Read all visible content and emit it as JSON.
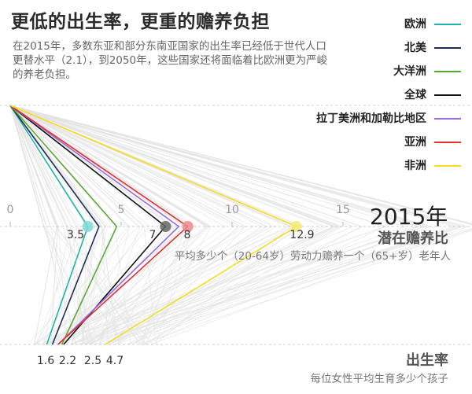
{
  "title": "更低的出生率，更重的赡养负担",
  "subtitle": "在2015年，多数东亚和部分东南亚国家的出生率已经低于世代人口更替水平（2.1），到2050年，这些国家还将面临着比欧洲更为严峻的养老负担。",
  "legend": [
    {
      "label": "欧洲",
      "color": "#1fb5ad"
    },
    {
      "label": "北美",
      "color": "#1f2d5a"
    },
    {
      "label": "大洋洲",
      "color": "#5aa832"
    },
    {
      "label": "全球",
      "color": "#111111"
    },
    {
      "label": "拉丁美洲和加勒比地区",
      "color": "#9b6be0"
    },
    {
      "label": "亚洲",
      "color": "#e53030"
    },
    {
      "label": "非洲",
      "color": "#f5dc1e"
    }
  ],
  "labels": {
    "year": "2015年",
    "measure": "潜在赡养比",
    "measure_desc": "平均多少个（20-64岁）劳动力赡养一个（65+岁）老年人",
    "birth": "出生率",
    "birth_desc": "每位女性平均生育多少个孩子"
  },
  "chart_data": {
    "type": "line",
    "x_axis": {
      "ticks": [
        "0",
        "5",
        "10",
        "15"
      ],
      "min": 0,
      "max": 20
    },
    "series": [
      {
        "name": "欧洲",
        "color": "#1fb5ad",
        "support_ratio": 3.5,
        "fertility": 1.6
      },
      {
        "name": "北美",
        "color": "#1f2d5a",
        "support_ratio": 4.0,
        "fertility": 1.9
      },
      {
        "name": "大洋洲",
        "color": "#5aa832",
        "support_ratio": 4.8,
        "fertility": 2.4
      },
      {
        "name": "全球",
        "color": "#111111",
        "support_ratio": 7,
        "fertility": 2.5
      },
      {
        "name": "拉丁美洲和加勒比地区",
        "color": "#9b6be0",
        "support_ratio": 7.6,
        "fertility": 2.2
      },
      {
        "name": "亚洲",
        "color": "#e53030",
        "support_ratio": 8,
        "fertility": 2.2
      },
      {
        "name": "非洲",
        "color": "#f5dc1e",
        "support_ratio": 12.9,
        "fertility": 4.7
      }
    ],
    "support_ratio_labels": [
      "3.5",
      "7",
      "8",
      "12.9"
    ],
    "fertility_labels": [
      "1.6",
      "2.2",
      "2.5",
      "4.7"
    ]
  }
}
